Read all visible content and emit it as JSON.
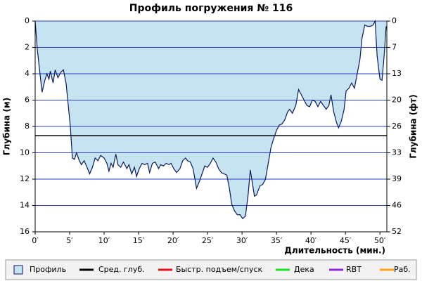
{
  "chart_data": {
    "type": "area",
    "title": "Профиль погружения № 116",
    "x_label": "Длительность (мин.)",
    "y_label": "Глубина (м)",
    "y2_label": "Глубина (фт)",
    "inverted_y": true,
    "grid": true,
    "grid_color": "#2a3fc4",
    "xlim": [
      0,
      51
    ],
    "xticks": [
      {
        "value": 0,
        "label": "0′"
      },
      {
        "value": 5,
        "label": "5′"
      },
      {
        "value": 10,
        "label": "10′"
      },
      {
        "value": 15,
        "label": "15′"
      },
      {
        "value": 20,
        "label": "20′"
      },
      {
        "value": 25,
        "label": "25′"
      },
      {
        "value": 30,
        "label": "30′"
      },
      {
        "value": 35,
        "label": "35′"
      },
      {
        "value": 40,
        "label": "40′"
      },
      {
        "value": 45,
        "label": "45′"
      },
      {
        "value": 50,
        "label": "50′"
      }
    ],
    "ylim": [
      0,
      16
    ],
    "yticks": [
      0,
      2,
      4,
      6,
      8,
      10,
      12,
      14,
      16
    ],
    "y2lim": [
      0,
      52.493
    ],
    "y2ticks": [
      0,
      {
        "value": 6.562,
        "label": "7"
      },
      {
        "value": 13.123,
        "label": "13"
      },
      {
        "value": 19.685,
        "label": "20"
      },
      {
        "value": 26.247,
        "label": "26"
      },
      {
        "value": 32.808,
        "label": "33"
      },
      {
        "value": 39.37,
        "label": "39"
      },
      {
        "value": 45.932,
        "label": "46"
      },
      {
        "value": 52.493,
        "label": "52"
      }
    ],
    "series": [
      {
        "name": "Профиль",
        "color": "#c5e3f0",
        "line_color": "#0a1a5c",
        "x": [
          0,
          0.3,
          0.7,
          1.0,
          1.4,
          1.7,
          2.0,
          2.2,
          2.6,
          2.9,
          3.3,
          3.7,
          4.1,
          4.5,
          4.8,
          5.1,
          5.4,
          5.7,
          6.0,
          6.4,
          6.7,
          7.1,
          7.6,
          7.9,
          8.3,
          8.7,
          9.1,
          9.5,
          10.0,
          10.4,
          10.7,
          11.0,
          11.3,
          11.7,
          12.0,
          12.4,
          12.8,
          13.3,
          13.6,
          14.0,
          14.4,
          14.7,
          15.1,
          15.5,
          15.9,
          16.3,
          16.6,
          17.0,
          17.4,
          17.9,
          18.2,
          18.6,
          19.0,
          19.4,
          19.7,
          20.1,
          20.5,
          21.0,
          21.4,
          21.8,
          22.1,
          22.5,
          22.9,
          23.4,
          23.8,
          24.2,
          24.6,
          25.0,
          25.4,
          25.8,
          26.2,
          26.6,
          27.0,
          27.4,
          27.8,
          28.2,
          28.5,
          28.9,
          29.3,
          29.7,
          30.1,
          30.5,
          30.9,
          31.2,
          31.5,
          31.8,
          32.1,
          32.6,
          33.0,
          33.4,
          33.8,
          34.2,
          34.6,
          35.0,
          35.4,
          35.8,
          36.2,
          36.6,
          36.9,
          37.3,
          37.8,
          38.2,
          38.6,
          39.0,
          39.4,
          39.8,
          40.2,
          40.6,
          41.0,
          41.4,
          41.8,
          42.2,
          42.6,
          42.9,
          43.3,
          43.7,
          44.0,
          44.4,
          44.8,
          45.1,
          45.5,
          45.9,
          46.3,
          46.7,
          47.1,
          47.4,
          47.8,
          48.2,
          48.6,
          49.0,
          49.3,
          49.6,
          50.0,
          50.3,
          50.6,
          50.9
        ],
        "values": [
          0,
          2.1,
          4.0,
          5.4,
          4.5,
          4.0,
          4.4,
          3.8,
          4.7,
          3.7,
          4.3,
          3.9,
          3.7,
          4.8,
          6.4,
          8.0,
          10.4,
          10.5,
          10.0,
          10.6,
          10.9,
          10.6,
          11.2,
          11.6,
          11.1,
          10.4,
          10.6,
          10.2,
          10.4,
          10.8,
          11.4,
          10.8,
          11.1,
          10.1,
          10.9,
          11.1,
          10.7,
          11.2,
          10.9,
          11.6,
          11.1,
          11.8,
          11.2,
          10.8,
          10.9,
          10.8,
          11.5,
          10.8,
          10.7,
          11.2,
          10.9,
          11.0,
          10.8,
          10.9,
          10.8,
          11.2,
          11.5,
          11.2,
          10.6,
          10.4,
          10.6,
          10.7,
          11.2,
          12.7,
          12.2,
          11.6,
          11.0,
          11.1,
          10.8,
          10.4,
          10.7,
          11.2,
          11.5,
          11.6,
          11.7,
          12.8,
          13.9,
          14.4,
          14.7,
          14.7,
          15.0,
          14.8,
          13.1,
          11.3,
          12.3,
          13.3,
          13.2,
          12.5,
          12.4,
          12.0,
          10.8,
          9.6,
          8.9,
          8.3,
          7.9,
          7.8,
          7.5,
          6.9,
          6.7,
          7.0,
          6.4,
          5.2,
          5.6,
          6.0,
          6.4,
          6.5,
          6.0,
          6.1,
          6.5,
          6.1,
          6.4,
          6.7,
          6.4,
          5.6,
          6.9,
          7.7,
          8.1,
          7.6,
          6.7,
          5.3,
          5.1,
          4.7,
          5.1,
          4.0,
          2.9,
          1.3,
          0.3,
          0.4,
          0.4,
          0.3,
          0,
          2.7,
          4.4,
          4.5,
          2.7,
          0.4
        ]
      }
    ],
    "reference_line": {
      "name": "Сред. глуб.",
      "color": "#000000",
      "value": 8.7
    },
    "legend": [
      {
        "name": "Быстр. подъем/спуск",
        "color": "#e8101a"
      },
      {
        "name": "Дека",
        "color": "#22dd22"
      },
      {
        "name": "RBT",
        "color": "#8a2be2"
      },
      {
        "name": "Раб.",
        "color": "#ffa020"
      }
    ]
  }
}
